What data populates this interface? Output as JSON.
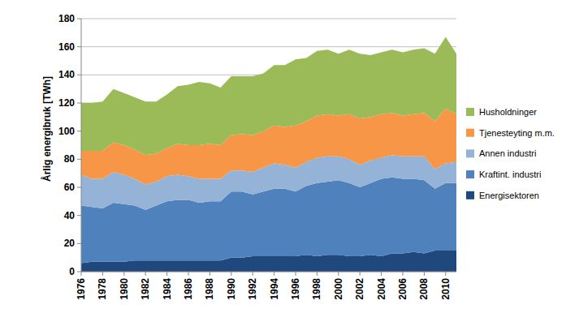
{
  "chart_data": {
    "type": "area",
    "stacked": true,
    "y_label": "Årlig energibruk [TWh]",
    "x": [
      1976,
      1977,
      1978,
      1979,
      1980,
      1981,
      1982,
      1983,
      1984,
      1985,
      1986,
      1987,
      1988,
      1989,
      1990,
      1991,
      1992,
      1993,
      1994,
      1995,
      1996,
      1997,
      1998,
      1999,
      2000,
      2001,
      2002,
      2003,
      2004,
      2005,
      2006,
      2007,
      2008,
      2009,
      2010,
      2011
    ],
    "xlim": [
      1976,
      2011
    ],
    "xticks": [
      1976,
      1978,
      1980,
      1982,
      1984,
      1986,
      1988,
      1990,
      1992,
      1994,
      1996,
      1998,
      2000,
      2002,
      2004,
      2006,
      2008,
      2010
    ],
    "ylim": [
      0,
      180
    ],
    "yticks": [
      0,
      20,
      40,
      60,
      80,
      100,
      120,
      140,
      160,
      180
    ],
    "grid": true,
    "legend": "right",
    "series": [
      {
        "name": "Energisektoren",
        "color": "#1f497d",
        "values": [
          6,
          7,
          7,
          7,
          7,
          8,
          8,
          8,
          8,
          8,
          8,
          8,
          8,
          8,
          10,
          10,
          11,
          11,
          11,
          11,
          11,
          12,
          11,
          12,
          12,
          11,
          11,
          12,
          11,
          13,
          13,
          14,
          13,
          15,
          15,
          15
        ]
      },
      {
        "name": "Kraftint. industri",
        "color": "#4f81bd",
        "values": [
          41,
          39,
          38,
          42,
          41,
          39,
          36,
          39,
          42,
          43,
          43,
          41,
          42,
          42,
          47,
          47,
          44,
          46,
          48,
          48,
          46,
          49,
          52,
          52,
          53,
          52,
          49,
          51,
          55,
          54,
          53,
          52,
          52,
          44,
          48,
          48
        ]
      },
      {
        "name": "Annen industri",
        "color": "#95b3d7",
        "values": [
          22,
          20,
          21,
          22,
          21,
          19,
          18,
          17,
          18,
          18,
          17,
          17,
          16,
          16,
          15,
          15,
          16,
          17,
          18,
          17,
          17,
          17,
          18,
          18,
          17,
          17,
          16,
          16,
          15,
          16,
          16,
          16,
          17,
          14,
          14,
          15
        ]
      },
      {
        "name": "Tjenesteyting m.m.",
        "color": "#f79646",
        "values": [
          17,
          20,
          20,
          21,
          21,
          21,
          21,
          20,
          20,
          22,
          22,
          24,
          25,
          24,
          25,
          26,
          26,
          26,
          27,
          27,
          30,
          29,
          30,
          30,
          29,
          32,
          33,
          31,
          31,
          30,
          29,
          30,
          31,
          34,
          39,
          34
        ]
      },
      {
        "name": "Husholdninger",
        "color": "#9bbb59",
        "values": [
          34,
          34,
          35,
          38,
          37,
          37,
          38,
          37,
          38,
          41,
          43,
          45,
          43,
          41,
          42,
          41,
          42,
          41,
          43,
          44,
          47,
          45,
          46,
          46,
          44,
          46,
          46,
          44,
          44,
          45,
          45,
          46,
          46,
          48,
          51,
          43
        ]
      }
    ]
  }
}
